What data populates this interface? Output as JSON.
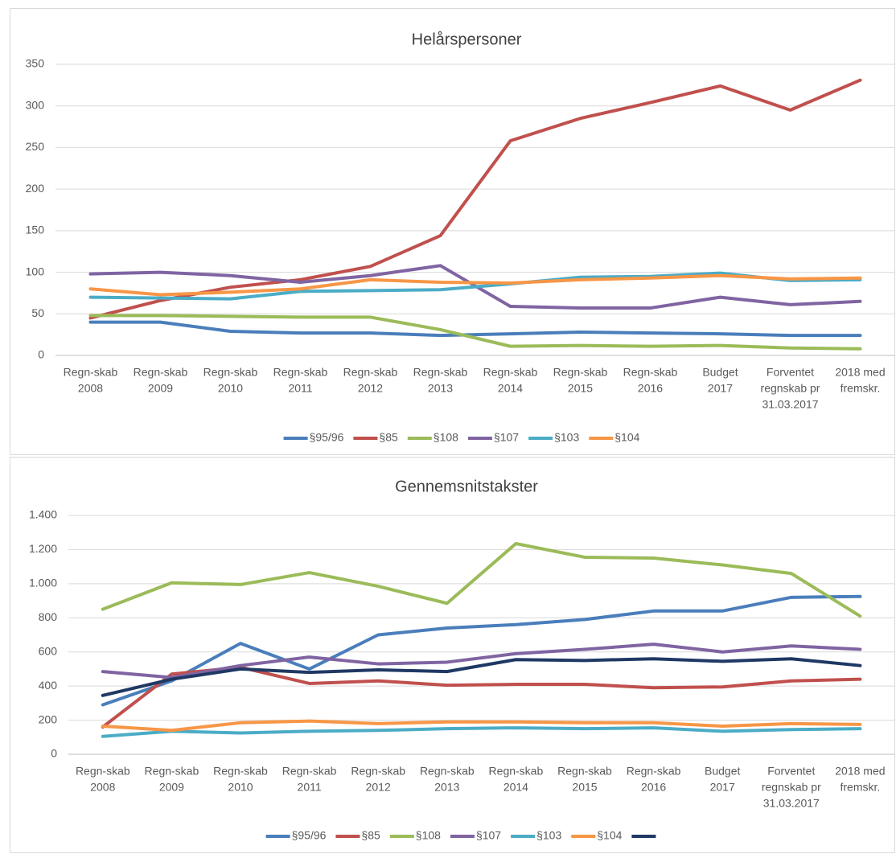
{
  "chart_data": [
    {
      "type": "line",
      "title": "Helårspersoner",
      "categories": [
        [
          "Regn-skab",
          "2008"
        ],
        [
          "Regn-skab",
          "2009"
        ],
        [
          "Regn-skab",
          "2010"
        ],
        [
          "Regn-skab",
          "2011"
        ],
        [
          "Regn-skab",
          "2012"
        ],
        [
          "Regn-skab",
          "2013"
        ],
        [
          "Regn-skab",
          "2014"
        ],
        [
          "Regn-skab",
          "2015"
        ],
        [
          "Regn-skab",
          "2016"
        ],
        [
          "Budget",
          "2017"
        ],
        [
          "Forventet",
          "regnskab pr",
          "31.03.2017"
        ],
        [
          "2018 med",
          "fremskr."
        ]
      ],
      "series": [
        {
          "name": "§95/96",
          "color": "#4a7ebb",
          "values": [
            40,
            40,
            29,
            27,
            27,
            24,
            26,
            28,
            27,
            26,
            24,
            24
          ]
        },
        {
          "name": "§85",
          "color": "#c0504d",
          "values": [
            45,
            66,
            82,
            91,
            107,
            144,
            258,
            285,
            304,
            324,
            295,
            331
          ]
        },
        {
          "name": "§108",
          "color": "#9bbb59",
          "values": [
            48,
            48,
            47,
            46,
            46,
            31,
            11,
            12,
            11,
            12,
            9,
            8
          ]
        },
        {
          "name": "§107",
          "color": "#8064a2",
          "values": [
            98,
            100,
            96,
            88,
            96,
            108,
            59,
            57,
            57,
            70,
            61,
            65
          ]
        },
        {
          "name": "§103",
          "color": "#4bacc6",
          "values": [
            70,
            69,
            68,
            77,
            78,
            79,
            86,
            94,
            95,
            99,
            90,
            91
          ]
        },
        {
          "name": "§104",
          "color": "#f79646",
          "values": [
            80,
            73,
            76,
            80,
            91,
            88,
            87,
            91,
            93,
            96,
            92,
            93
          ]
        }
      ],
      "ylim": [
        0,
        350
      ],
      "yticks": [
        0,
        50,
        100,
        150,
        200,
        250,
        300,
        350
      ],
      "grid": true,
      "legend": "bottom"
    },
    {
      "type": "line",
      "title": "Gennemsnitstakster",
      "categories": [
        [
          "Regn-skab",
          "2008"
        ],
        [
          "Regn-skab",
          "2009"
        ],
        [
          "Regn-skab",
          "2010"
        ],
        [
          "Regn-skab",
          "2011"
        ],
        [
          "Regn-skab",
          "2012"
        ],
        [
          "Regn-skab",
          "2013"
        ],
        [
          "Regn-skab",
          "2014"
        ],
        [
          "Regn-skab",
          "2015"
        ],
        [
          "Regn-skab",
          "2016"
        ],
        [
          "Budget",
          "2017"
        ],
        [
          "Forventet",
          "regnskab pr",
          "31.03.2017"
        ],
        [
          "2018 med",
          "fremskr."
        ]
      ],
      "series": [
        {
          "name": "§95/96",
          "color": "#4a7ebb",
          "values": [
            290,
            430,
            650,
            500,
            700,
            740,
            760,
            790,
            840,
            840,
            920,
            925
          ]
        },
        {
          "name": "§85",
          "color": "#c0504d",
          "values": [
            160,
            470,
            510,
            415,
            430,
            405,
            410,
            410,
            390,
            395,
            430,
            440
          ]
        },
        {
          "name": "§108",
          "color": "#9bbb59",
          "values": [
            850,
            1005,
            995,
            1065,
            985,
            885,
            1235,
            1155,
            1150,
            1110,
            1060,
            810
          ]
        },
        {
          "name": "§107",
          "color": "#8064a2",
          "values": [
            485,
            450,
            520,
            570,
            530,
            540,
            590,
            615,
            645,
            600,
            635,
            615
          ]
        },
        {
          "name": "§103",
          "color": "#4bacc6",
          "values": [
            105,
            135,
            125,
            135,
            140,
            150,
            155,
            150,
            155,
            135,
            145,
            150
          ]
        },
        {
          "name": "§104",
          "color": "#f79646",
          "values": [
            165,
            140,
            185,
            195,
            180,
            190,
            190,
            185,
            185,
            165,
            180,
            175
          ]
        },
        {
          "color": "#1f3864",
          "values": [
            345,
            440,
            500,
            480,
            495,
            485,
            555,
            550,
            560,
            545,
            560,
            520
          ]
        }
      ],
      "ylim": [
        0,
        1400
      ],
      "yticks": [
        0,
        200,
        400,
        600,
        800,
        {
          "value": 1000,
          "label": "1.000"
        },
        {
          "value": 1200,
          "label": "1.200"
        },
        {
          "value": 1400,
          "label": "1.400"
        }
      ],
      "grid": true,
      "legend": "bottom"
    }
  ]
}
